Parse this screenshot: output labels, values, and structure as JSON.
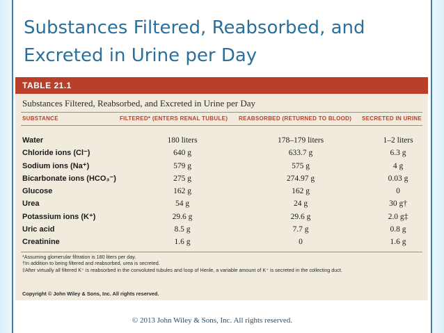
{
  "slide": {
    "title": "Substances Filtered, Reabsorbed, and Excreted in Urine per Day",
    "footer": "© 2013 John Wiley & Sons, Inc. All rights reserved."
  },
  "table": {
    "number": "TABLE 21.1",
    "caption": "Substances Filtered, Reabsorbed, and Excreted in Urine per Day",
    "headers": [
      "SUBSTANCE",
      "FILTERED* (ENTERS RENAL TUBULE)",
      "REABSORBED (RETURNED TO BLOOD)",
      "SECRETED IN URINE"
    ],
    "rows": [
      {
        "name": "Water",
        "filtered": "180 liters",
        "reabsorbed": "178–179 liters",
        "secreted": "1–2 liters"
      },
      {
        "name": "Chloride ions (Cl⁻)",
        "filtered": "640 g",
        "reabsorbed": "633.7 g",
        "secreted": "6.3 g"
      },
      {
        "name": "Sodium ions (Na⁺)",
        "filtered": "579 g",
        "reabsorbed": "575 g",
        "secreted": "4 g"
      },
      {
        "name": "Bicarbonate ions (HCO₃⁻)",
        "filtered": "275 g",
        "reabsorbed": "274.97 g",
        "secreted": "0.03 g"
      },
      {
        "name": "Glucose",
        "filtered": "162 g",
        "reabsorbed": "162 g",
        "secreted": "0"
      },
      {
        "name": "Urea",
        "filtered": "54 g",
        "reabsorbed": "24 g",
        "secreted": "30 g†"
      },
      {
        "name": "Potassium ions (K⁺)",
        "filtered": "29.6 g",
        "reabsorbed": "29.6 g",
        "secreted": "2.0 g‡"
      },
      {
        "name": "Uric acid",
        "filtered": "8.5 g",
        "reabsorbed": "7.7 g",
        "secreted": "0.8 g"
      },
      {
        "name": "Creatinine",
        "filtered": "1.6 g",
        "reabsorbed": "0",
        "secreted": "1.6 g"
      }
    ],
    "footnotes": [
      "*Assuming glomerular filtration is 180 liters per day.",
      "†In addition to being filtered and reabsorbed, urea is secreted.",
      "‡After virtually all filtered K⁺ is reabsorbed in the convoluted tubules and loop of Henle, a variable amount of K⁺ is secreted in the collecting duct."
    ],
    "copyright": "Copyright © John Wiley & Sons, Inc. All rights reserved."
  }
}
